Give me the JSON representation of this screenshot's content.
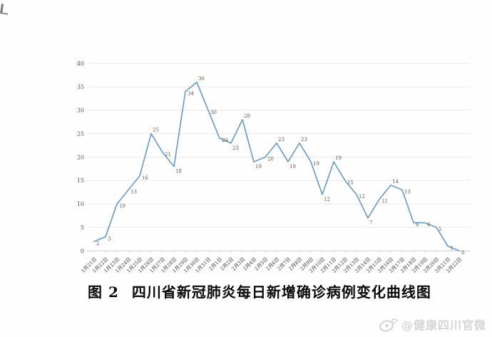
{
  "caption": {
    "prefix": "图 2",
    "title": "四川省新冠肺炎每日新增确诊病例变化曲线图"
  },
  "watermark": {
    "icon": "weibo-icon",
    "text": "@健康四川官微",
    "color": "#d6d6d6"
  },
  "chart_data": {
    "type": "line",
    "title": "四川省新冠肺炎每日新增确诊病例变化曲线图",
    "x": [
      "1月21日",
      "1月22日",
      "1月23日",
      "1月24日",
      "1月25日",
      "1月26日",
      "1月27日",
      "1月28日",
      "1月29日",
      "1月30日",
      "1月31日",
      "2月1日",
      "2月2日",
      "2月3日",
      "2月4日",
      "2月5日",
      "2月6日",
      "2月7日",
      "2月8日",
      "2月9日",
      "2月10日",
      "2月11日",
      "2月12日",
      "2月13日",
      "2月14日",
      "2月15日",
      "2月16日",
      "2月17日",
      "2月18日",
      "2月19日",
      "2月20日",
      "2月21日",
      "2月22日"
    ],
    "values": [
      2,
      3,
      10,
      13,
      16,
      25,
      21,
      18,
      34,
      36,
      30,
      24,
      23,
      28,
      19,
      20,
      23,
      19,
      23,
      19,
      12,
      19,
      15,
      12,
      7,
      11,
      14,
      13,
      6,
      6,
      5,
      1,
      0
    ],
    "show_point_labels": true,
    "xlabel": "",
    "ylabel": "",
    "ylim": [
      0,
      40
    ],
    "yticks": [
      0,
      5,
      10,
      15,
      20,
      25,
      30,
      35,
      40
    ],
    "grid": true,
    "legend": "none",
    "line_color": "#6d9ec8",
    "grid_color": "#eaeaea",
    "axis_color": "#cccccc"
  }
}
